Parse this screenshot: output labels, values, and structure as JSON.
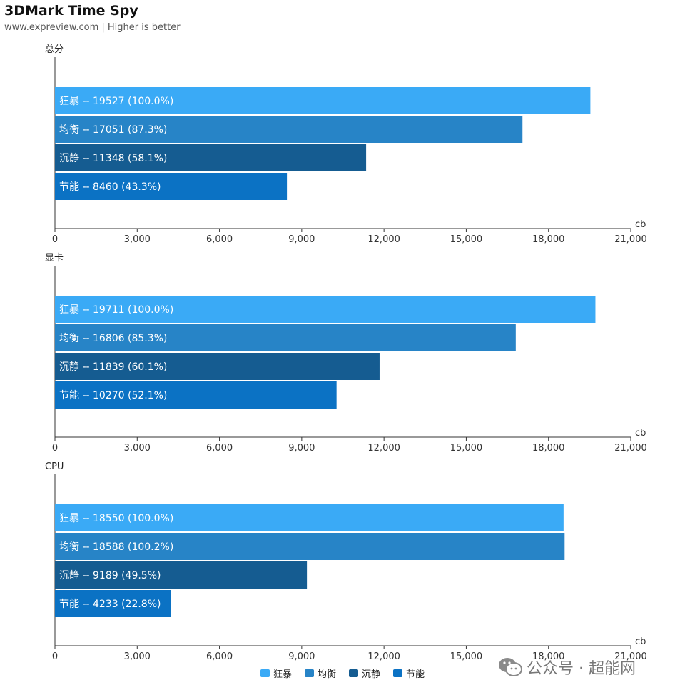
{
  "header": {
    "title": "3DMark Time Spy",
    "subtitle": "www.expreview.com | Higher is better"
  },
  "colors": {
    "狂暴": "#3aaaf6",
    "均衡": "#2784c7",
    "沉静": "#155c91",
    "节能": "#0b72c4",
    "axis": "#333333"
  },
  "chart_data": [
    {
      "type": "bar",
      "orientation": "horizontal",
      "title": "总分",
      "unit": "cb",
      "xlim": [
        0,
        21000
      ],
      "ticks": [
        0,
        3000,
        6000,
        9000,
        12000,
        15000,
        18000,
        21000
      ],
      "tick_labels": [
        "0",
        "3,000",
        "6,000",
        "9,000",
        "12,000",
        "15,000",
        "18,000",
        "21,000"
      ],
      "bars": [
        {
          "name": "狂暴",
          "value": 19527,
          "label": "狂暴  --  19527 (100.0%)"
        },
        {
          "name": "均衡",
          "value": 17051,
          "label": "均衡  --  17051 (87.3%)"
        },
        {
          "name": "沉静",
          "value": 11348,
          "label": "沉静  --  11348 (58.1%)"
        },
        {
          "name": "节能",
          "value": 8460,
          "label": "节能  --  8460 (43.3%)"
        }
      ]
    },
    {
      "type": "bar",
      "orientation": "horizontal",
      "title": "显卡",
      "unit": "cb",
      "xlim": [
        0,
        21000
      ],
      "ticks": [
        0,
        3000,
        6000,
        9000,
        12000,
        15000,
        18000,
        21000
      ],
      "tick_labels": [
        "0",
        "3,000",
        "6,000",
        "9,000",
        "12,000",
        "15,000",
        "18,000",
        "21,000"
      ],
      "bars": [
        {
          "name": "狂暴",
          "value": 19711,
          "label": "狂暴  --  19711 (100.0%)"
        },
        {
          "name": "均衡",
          "value": 16806,
          "label": "均衡  --  16806 (85.3%)"
        },
        {
          "name": "沉静",
          "value": 11839,
          "label": "沉静  --  11839 (60.1%)"
        },
        {
          "name": "节能",
          "value": 10270,
          "label": "节能  --  10270 (52.1%)"
        }
      ]
    },
    {
      "type": "bar",
      "orientation": "horizontal",
      "title": "CPU",
      "unit": "cb",
      "xlim": [
        0,
        21000
      ],
      "ticks": [
        0,
        3000,
        6000,
        9000,
        12000,
        15000,
        18000,
        21000
      ],
      "tick_labels": [
        "0",
        "3,000",
        "6,000",
        "9,000",
        "12,000",
        "15,000",
        "18,000",
        "21,000"
      ],
      "bars": [
        {
          "name": "狂暴",
          "value": 18550,
          "label": "狂暴  --  18550 (100.0%)"
        },
        {
          "name": "均衡",
          "value": 18588,
          "label": "均衡  --  18588 (100.2%)"
        },
        {
          "name": "沉静",
          "value": 9189,
          "label": "沉静  --  9189 (49.5%)"
        },
        {
          "name": "节能",
          "value": 4233,
          "label": "节能  --  4233 (22.8%)"
        }
      ]
    }
  ],
  "legend": [
    {
      "name": "狂暴"
    },
    {
      "name": "均衡"
    },
    {
      "name": "沉静"
    },
    {
      "name": "节能"
    }
  ],
  "watermark": {
    "icon": "wechat-icon",
    "text": "公众号 · 超能网"
  }
}
